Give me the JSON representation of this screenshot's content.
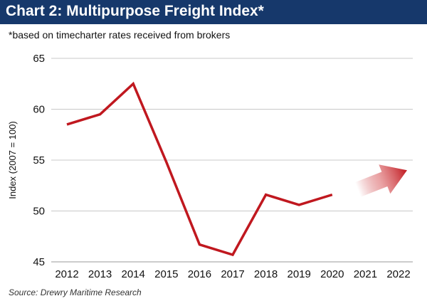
{
  "header": {
    "title": "Chart 2: Multipurpose Freight Index*",
    "subtitle": "*based on timecharter rates received from brokers"
  },
  "footer": {
    "source": "Source: Drewry Maritime Research"
  },
  "colors": {
    "banner": "#16386b",
    "line": "#c0181f",
    "grid": "#c8c8c8",
    "arrow": "#c0181f"
  },
  "chart_data": {
    "type": "line",
    "title": "Chart 2: Multipurpose Freight Index*",
    "ylabel": "Index (2007 = 100)",
    "xlabel": "",
    "categories": [
      "2012",
      "2013",
      "2014",
      "2015",
      "2016",
      "2017",
      "2018",
      "2019",
      "2020",
      "2021",
      "2022"
    ],
    "ylim": [
      45,
      65
    ],
    "yticks": [
      65,
      60,
      55,
      50,
      45
    ],
    "grid": "horizontal",
    "series": [
      {
        "values": [
          58.5,
          59.5,
          62.5,
          54.8,
          46.7,
          45.7,
          51.6,
          50.6,
          51.6,
          null,
          null
        ]
      }
    ],
    "annotations": [
      {
        "type": "arrow",
        "meaning": "upward trend forecast",
        "from_category": "2020",
        "to_category": "2022"
      }
    ]
  }
}
